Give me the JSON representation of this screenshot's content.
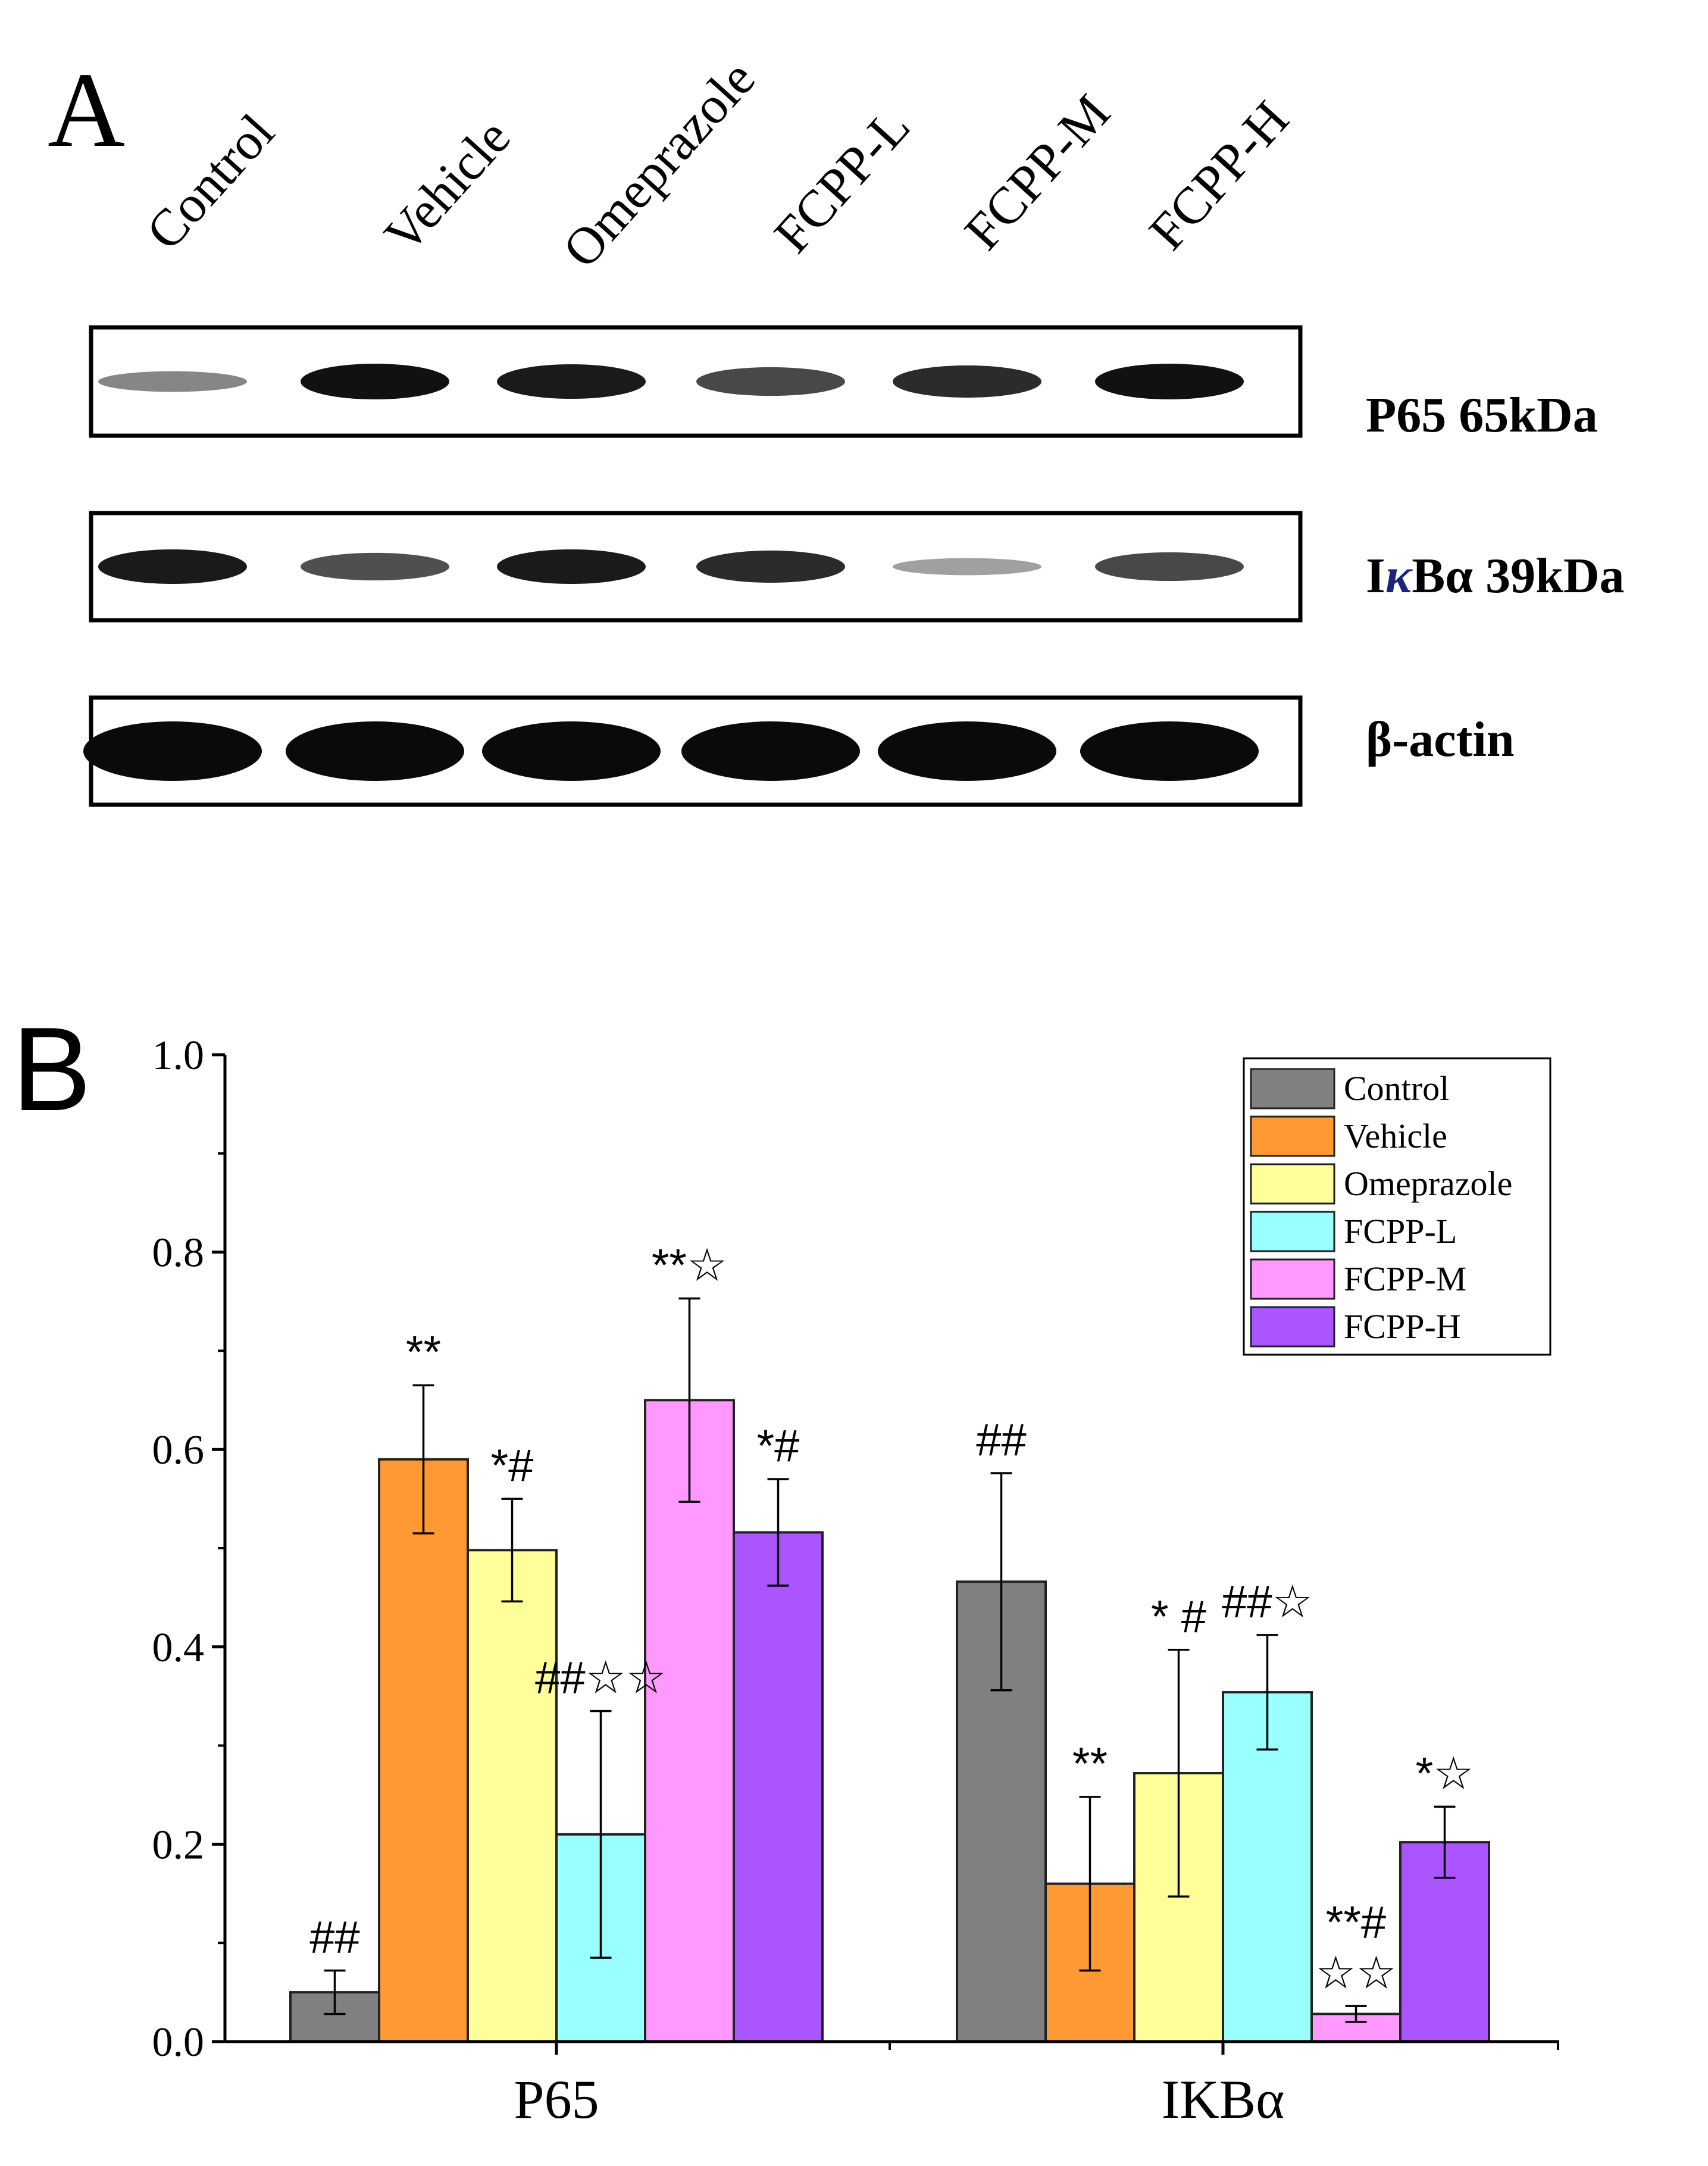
{
  "panel_a": {
    "label": "A",
    "lanes": [
      "Control",
      "Vehicle",
      "Omeprazole",
      "FCPP-L",
      "FCPP-M",
      "FCPP-H"
    ],
    "blots": [
      {
        "name": "P65 65kDa",
        "band_intensity": [
          0.35,
          1.0,
          0.95,
          0.7,
          0.85,
          1.0
        ],
        "band_color": "#111111"
      },
      {
        "name_parts": [
          "I",
          "κ",
          "Bα 39kDa"
        ],
        "band_intensity": [
          0.95,
          0.65,
          0.95,
          0.85,
          0.2,
          0.7
        ],
        "band_color": "#111111"
      },
      {
        "name": "β-actin",
        "band_intensity": [
          1.0,
          1.0,
          1.0,
          1.0,
          1.0,
          1.0
        ],
        "band_color": "#0a0a0a"
      }
    ]
  },
  "panel_b": {
    "label": "B",
    "legend": [
      {
        "name": "Control",
        "color": "#808080"
      },
      {
        "name": "Vehicle",
        "color": "#FF9933"
      },
      {
        "name": "Omeprazole",
        "color": "#FFFF99"
      },
      {
        "name": "FCPP-L",
        "color": "#99FFFF"
      },
      {
        "name": "FCPP-M",
        "color": "#FF99FF"
      },
      {
        "name": "FCPP-H",
        "color": "#AA55FF"
      }
    ]
  },
  "chart_data": {
    "type": "bar",
    "categories": [
      "P65",
      "IKBα"
    ],
    "ylim": [
      0,
      1.0
    ],
    "yticks": [
      "0.0",
      "0.2",
      "0.4",
      "0.6",
      "0.8",
      "1.0"
    ],
    "ytick_values": [
      0,
      0.2,
      0.4,
      0.6,
      0.8,
      1.0
    ],
    "legend_position": "top-right",
    "series": [
      {
        "name": "Control",
        "color": "#808080",
        "values": [
          0.05,
          0.466
        ],
        "errors": [
          0.022,
          0.11
        ],
        "annotations": [
          "##",
          "##"
        ]
      },
      {
        "name": "Vehicle",
        "color": "#FF9933",
        "values": [
          0.59,
          0.16
        ],
        "errors": [
          0.075,
          0.088
        ],
        "annotations": [
          "**",
          "**"
        ]
      },
      {
        "name": "Omeprazole",
        "color": "#FFFF99",
        "values": [
          0.498,
          0.272
        ],
        "errors": [
          0.052,
          0.125
        ],
        "annotations": [
          "*#",
          "* #"
        ]
      },
      {
        "name": "FCPP-L",
        "color": "#99FFFF",
        "values": [
          0.21,
          0.354
        ],
        "errors": [
          0.125,
          0.058
        ],
        "annotations": [
          "##☆☆",
          "##☆"
        ]
      },
      {
        "name": "FCPP-M",
        "color": "#FF99FF",
        "values": [
          0.65,
          0.028
        ],
        "errors": [
          0.103,
          0.008
        ],
        "annotations": [
          "**☆",
          "**#\n☆☆"
        ]
      },
      {
        "name": "FCPP-H",
        "color": "#AA55FF",
        "values": [
          0.516,
          0.202
        ],
        "errors": [
          0.054,
          0.036
        ],
        "annotations": [
          "*#",
          "*☆"
        ]
      }
    ]
  }
}
